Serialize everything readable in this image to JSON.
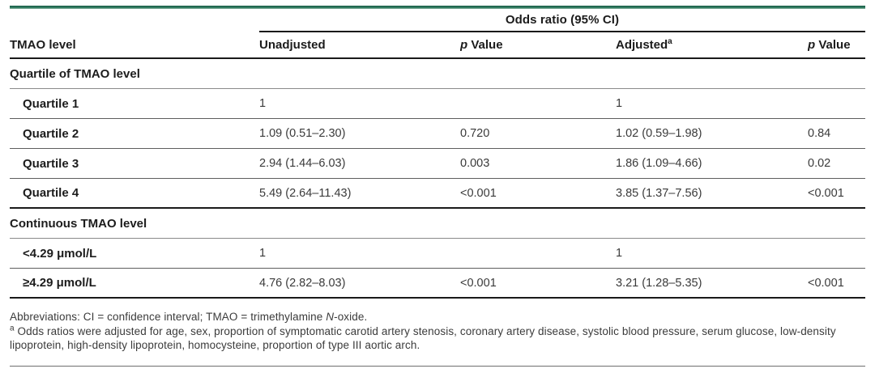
{
  "table": {
    "spanner_label": "Odds ratio (95% CI)",
    "columns": {
      "stub": "TMAO level",
      "unadjusted": "Unadjusted",
      "p_italic": "p",
      "p_rest": " Value",
      "adjusted_base": "Adjusted",
      "adjusted_sup": "a"
    },
    "rows": [
      {
        "type": "section",
        "label": "Quartile of TMAO level"
      },
      {
        "type": "data",
        "label": "Quartile 1",
        "unadjusted": "1",
        "p_unadjusted": "",
        "adjusted": "1",
        "p_adjusted": ""
      },
      {
        "type": "data",
        "label": "Quartile 2",
        "unadjusted": "1.09 (0.51–2.30)",
        "p_unadjusted": "0.720",
        "adjusted": "1.02 (0.59–1.98)",
        "p_adjusted": "0.84"
      },
      {
        "type": "data",
        "label": "Quartile 3",
        "unadjusted": "2.94 (1.44–6.03)",
        "p_unadjusted": "0.003",
        "adjusted": "1.86 (1.09–4.66)",
        "p_adjusted": "0.02"
      },
      {
        "type": "data",
        "label": "Quartile 4",
        "unadjusted": "5.49 (2.64–11.43)",
        "p_unadjusted": "<0.001",
        "adjusted": "3.85 (1.37–7.56)",
        "p_adjusted": "<0.001"
      },
      {
        "type": "section",
        "label": "Continuous TMAO level"
      },
      {
        "type": "data",
        "label": "<4.29 μmol/L",
        "unadjusted": "1",
        "p_unadjusted": "",
        "adjusted": "1",
        "p_adjusted": ""
      },
      {
        "type": "data",
        "label": "≥4.29 μmol/L",
        "unadjusted": "4.76 (2.82–8.03)",
        "p_unadjusted": "<0.001",
        "adjusted": "3.21 (1.28–5.35)",
        "p_adjusted": "<0.001"
      }
    ]
  },
  "footnotes": {
    "abbrev_pre": "Abbreviations: CI = confidence interval; TMAO = trimethylamine ",
    "abbrev_italic": "N",
    "abbrev_post": "-oxide.",
    "note_marker": "a",
    "note_text": " Odds ratios were adjusted for age, sex, proportion of symptomatic carotid artery stenosis, coronary artery disease, systolic blood pressure, serum glucose, low-density lipoprotein, high-density lipoprotein, homocysteine, proportion of type III aortic arch."
  },
  "colors": {
    "accent_green": "#27745a",
    "rule_dark": "#1a1a1a"
  }
}
